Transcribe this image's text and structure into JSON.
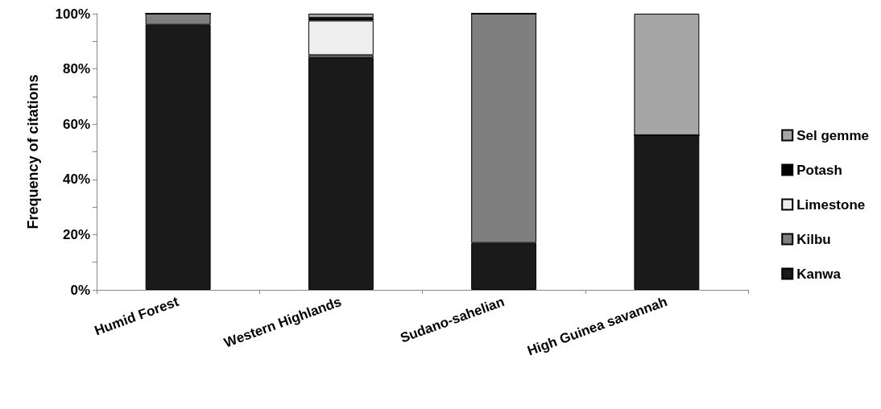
{
  "chart_data": {
    "type": "bar",
    "stacked": true,
    "ylabel": "Frequency of citations",
    "categories": [
      "Humid Forest",
      "Western Highlands",
      "Sudano-sahelian",
      "High Guinea savannah"
    ],
    "series": [
      {
        "name": "Kanwa",
        "color": "#1a1a1a",
        "values": [
          96,
          84,
          17,
          56
        ]
      },
      {
        "name": "Kilbu",
        "color": "#7f7f7f",
        "values": [
          4,
          1,
          83,
          0
        ]
      },
      {
        "name": "Limestone",
        "color": "#eeeeee",
        "values": [
          0,
          12.5,
          0,
          0
        ]
      },
      {
        "name": "Potash",
        "color": "#000000",
        "values": [
          0,
          1,
          0,
          0
        ]
      },
      {
        "name": "Sel gemme",
        "color": "#a6a6a6",
        "values": [
          0,
          1.5,
          0,
          44
        ]
      }
    ],
    "ylim": [
      0,
      100
    ],
    "yticks": [
      {
        "value": 0,
        "label": "0%"
      },
      {
        "value": 10,
        "label": null
      },
      {
        "value": 20,
        "label": "20%"
      },
      {
        "value": 30,
        "label": null
      },
      {
        "value": 40,
        "label": "40%"
      },
      {
        "value": 50,
        "label": null
      },
      {
        "value": 60,
        "label": "60%"
      },
      {
        "value": 70,
        "label": null
      },
      {
        "value": 80,
        "label": "80%"
      },
      {
        "value": 90,
        "label": null
      },
      {
        "value": 100,
        "label": "100%"
      }
    ],
    "grid": false,
    "legend": "right"
  }
}
